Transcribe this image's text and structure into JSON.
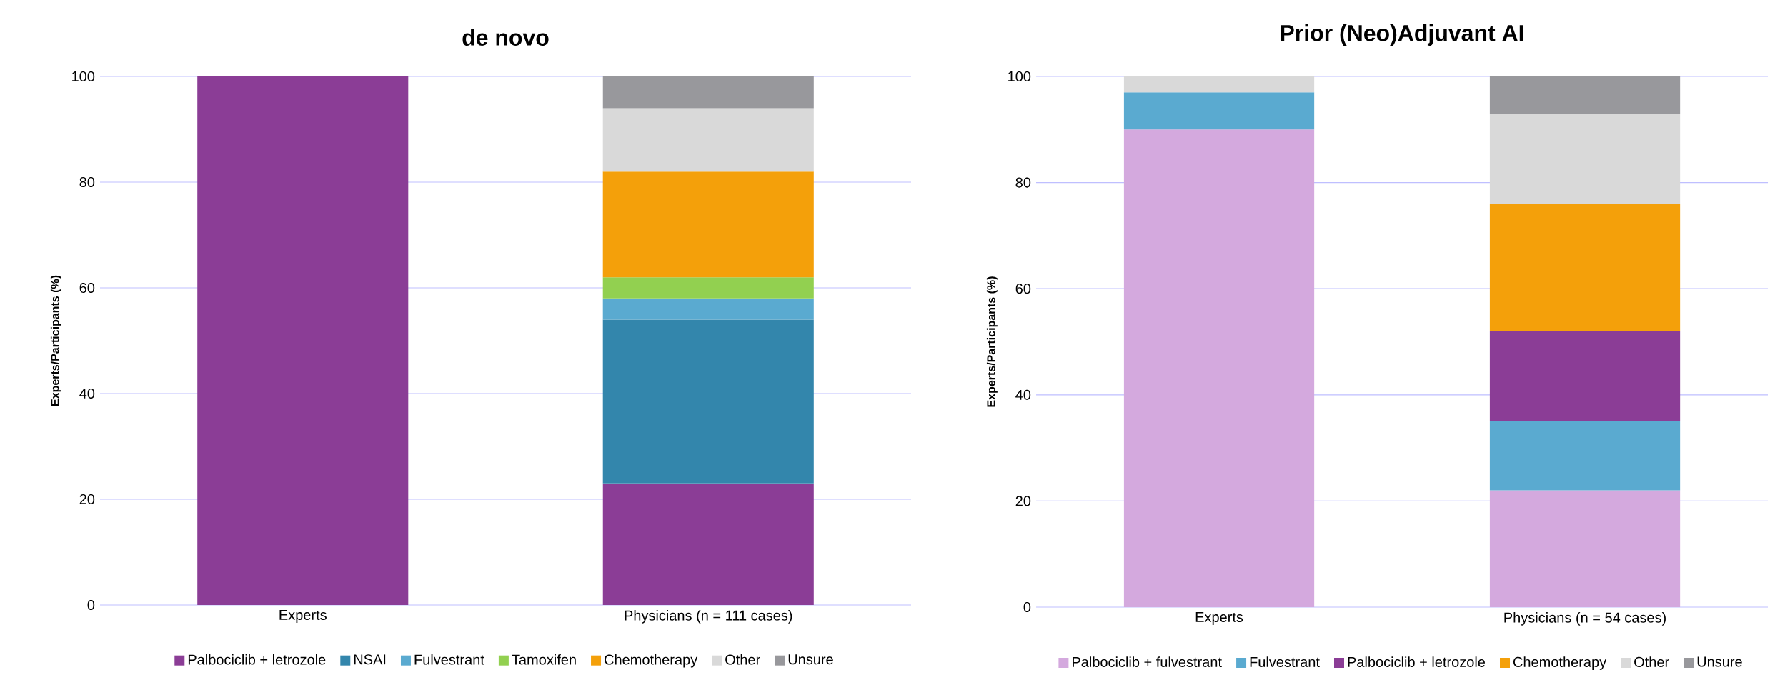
{
  "chart_data": [
    {
      "type": "bar",
      "stacked": true,
      "title": "de novo",
      "ylabel": "Experts/Participants (%)",
      "categories": [
        "Experts",
        "Physicians (n = 111 cases)"
      ],
      "ylim": [
        0,
        100
      ],
      "yticks": [
        0,
        20,
        40,
        60,
        80,
        100
      ],
      "grid": "y",
      "legend": "bottom",
      "series": [
        {
          "name": "Palbociclib + letrozole",
          "color": "#8b3d96",
          "values": [
            100,
            23
          ]
        },
        {
          "name": "NSAI",
          "color": "#3386ac",
          "values": [
            null,
            31
          ]
        },
        {
          "name": "Fulvestrant",
          "color": "#5aaad0",
          "values": [
            null,
            4
          ]
        },
        {
          "name": "Tamoxifen",
          "color": "#92d050",
          "values": [
            null,
            4
          ]
        },
        {
          "name": "Chemotherapy",
          "color": "#f4a00a",
          "values": [
            null,
            20
          ]
        },
        {
          "name": "Other",
          "color": "#d9d9d9",
          "values": [
            null,
            12
          ]
        },
        {
          "name": "Unsure",
          "color": "#98989c",
          "values": [
            null,
            6
          ]
        }
      ]
    },
    {
      "type": "bar",
      "stacked": true,
      "title": "Prior (Neo)Adjuvant AI",
      "ylabel": "Experts/Participants (%)",
      "categories": [
        "Experts",
        "Physicians (n = 54 cases)"
      ],
      "ylim": [
        0,
        100
      ],
      "yticks": [
        0,
        20,
        40,
        60,
        80,
        100
      ],
      "grid": "y",
      "legend": "bottom",
      "series": [
        {
          "name": "Palbociclib + fulvestrant",
          "color": "#d4a9de",
          "values": [
            90,
            22
          ]
        },
        {
          "name": "Fulvestrant",
          "color": "#5aaad0",
          "values": [
            7,
            13
          ]
        },
        {
          "name": "Palbociclib + letrozole",
          "color": "#8b3d96",
          "values": [
            null,
            17
          ]
        },
        {
          "name": "Chemotherapy",
          "color": "#f4a00a",
          "values": [
            null,
            24
          ]
        },
        {
          "name": "Other",
          "color": "#d9d9d9",
          "values": [
            3,
            17
          ]
        },
        {
          "name": "Unsure",
          "color": "#98989c",
          "values": [
            null,
            7
          ]
        }
      ]
    }
  ]
}
